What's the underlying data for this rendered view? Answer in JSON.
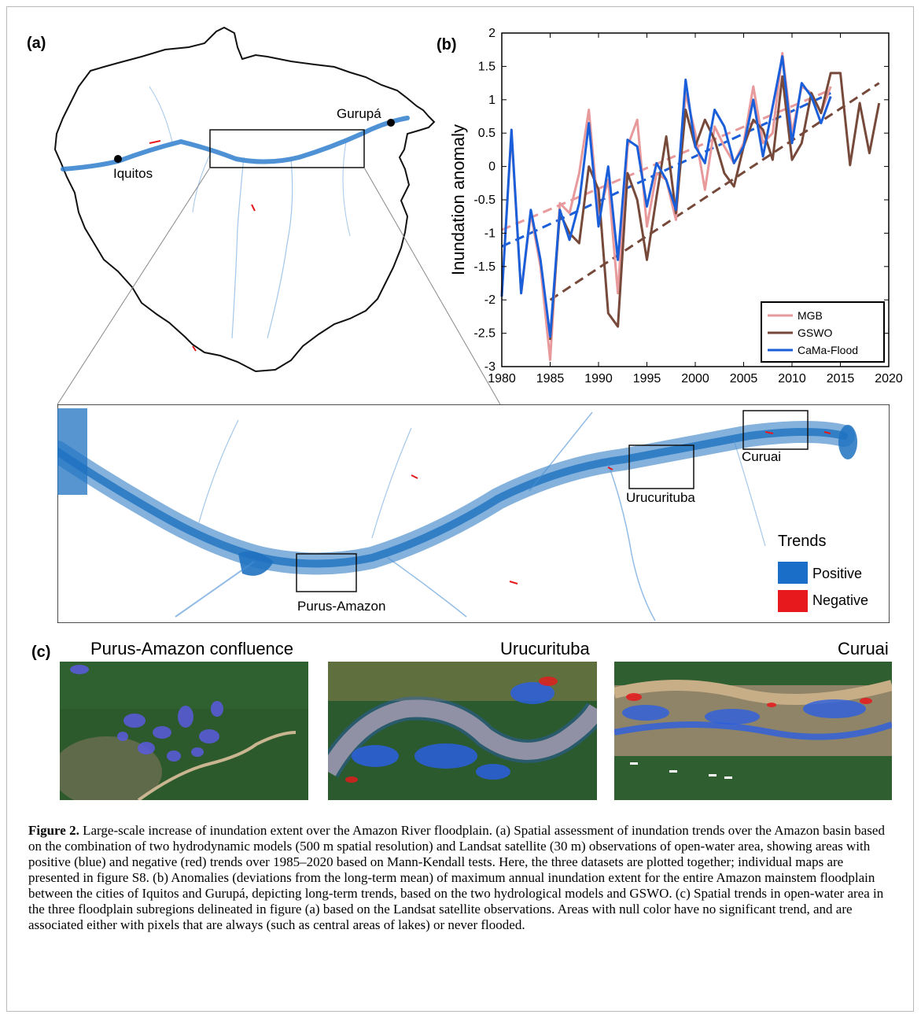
{
  "panels": {
    "a": "(a)",
    "b": "(b)",
    "c": "(c)"
  },
  "map": {
    "cities": {
      "iquitos": "Iquitos",
      "gurupa": "Gurupá"
    },
    "regions": {
      "curuai": "Curuai",
      "urucurituba": "Urucurituba",
      "purus": "Purus-Amazon"
    },
    "legend": {
      "title": "Trends",
      "positive": "Positive",
      "negative": "Negative"
    },
    "colors": {
      "positive": "#1a6ec8",
      "negative": "#e8191c"
    }
  },
  "satellite_titles": {
    "purus": "Purus-Amazon  confluence",
    "urucurituba": "Urucurituba",
    "curuai": "Curuai"
  },
  "chart_data": {
    "type": "line",
    "ylabel": "Inundation  anomaly",
    "xlim": [
      1980,
      2020
    ],
    "ylim": [
      -3,
      2
    ],
    "xticks": [
      "1980",
      "1985",
      "1990",
      "1995",
      "2000",
      "2005",
      "2010",
      "2015",
      "2020"
    ],
    "yticks": [
      "2",
      "1.5",
      "1",
      "0.5",
      "0",
      "-0.5",
      "-1",
      "-1.5",
      "-2",
      "-2.5",
      "-3"
    ],
    "legend_position": "bottom-right",
    "series": [
      {
        "name": "MGB",
        "color": "#e8999b",
        "x": [
          1980,
          1981,
          1982,
          1983,
          1984,
          1985,
          1986,
          1987,
          1988,
          1989,
          1990,
          1991,
          1992,
          1993,
          1994,
          1995,
          1996,
          1997,
          1998,
          1999,
          2000,
          2001,
          2002,
          2003,
          2004,
          2005,
          2006,
          2007,
          2008,
          2009,
          2010,
          2011,
          2012,
          2013,
          2014
        ],
        "y": [
          -1.9,
          0.5,
          -1.9,
          -0.7,
          -1.5,
          -2.9,
          -0.55,
          -0.7,
          -0.1,
          0.85,
          -0.75,
          -0.2,
          -1.9,
          0.3,
          0.7,
          -0.9,
          -0.1,
          -0.2,
          -0.8,
          1.1,
          0.5,
          -0.35,
          0.6,
          0.3,
          0.05,
          0.35,
          1.2,
          0.35,
          0.5,
          1.7,
          0.5,
          1.2,
          1.1,
          0.8,
          1.2
        ],
        "trend": [
          -0.95,
          1.15
        ]
      },
      {
        "name": "GSWO",
        "color": "#76493a",
        "x": [
          1985,
          1986,
          1987,
          1988,
          1989,
          1990,
          1991,
          1992,
          1993,
          1994,
          1995,
          1996,
          1997,
          1998,
          1999,
          2000,
          2001,
          2002,
          2003,
          2004,
          2005,
          2006,
          2007,
          2008,
          2009,
          2010,
          2011,
          2012,
          2013,
          2014,
          2015,
          2016,
          2017,
          2018,
          2019
        ],
        "y": [
          -2.6,
          -0.7,
          -1.0,
          -1.15,
          0.0,
          -0.35,
          -2.2,
          -2.4,
          -0.1,
          -0.5,
          -1.4,
          -0.45,
          0.45,
          -0.7,
          0.85,
          0.3,
          0.7,
          0.4,
          -0.1,
          -0.3,
          0.3,
          0.7,
          0.55,
          0.1,
          1.35,
          0.1,
          0.35,
          1.1,
          0.8,
          1.4,
          1.4,
          0.02,
          0.95,
          0.2,
          0.95
        ],
        "trend": [
          -2.0,
          1.25
        ]
      },
      {
        "name": "CaMa-Flood",
        "color": "#1a5fd9",
        "x": [
          1980,
          1981,
          1982,
          1983,
          1984,
          1985,
          1986,
          1987,
          1988,
          1989,
          1990,
          1991,
          1992,
          1993,
          1994,
          1995,
          1996,
          1997,
          1998,
          1999,
          2000,
          2001,
          2002,
          2003,
          2004,
          2005,
          2006,
          2007,
          2008,
          2009,
          2010,
          2011,
          2012,
          2013,
          2014
        ],
        "y": [
          -1.95,
          0.55,
          -1.9,
          -0.65,
          -1.4,
          -2.55,
          -0.65,
          -1.1,
          -0.55,
          0.65,
          -0.9,
          0.0,
          -1.4,
          0.4,
          0.3,
          -0.6,
          0.05,
          -0.2,
          -0.65,
          1.3,
          0.3,
          0.05,
          0.85,
          0.6,
          0.05,
          0.3,
          1.0,
          0.15,
          0.9,
          1.65,
          0.35,
          1.25,
          1.05,
          0.65,
          1.05
        ],
        "trend": [
          -1.2,
          1.1
        ]
      }
    ]
  },
  "caption": {
    "label": "Figure 2.",
    "text": " Large-scale increase of inundation extent over the Amazon River floodplain. (a) Spatial assessment of inundation trends over the Amazon basin based on the combination of two hydrodynamic models (500 m spatial resolution) and Landsat satellite (30 m) observations of open-water area, showing areas with positive (blue) and negative (red) trends over 1985–2020 based on Mann-Kendall tests. Here, the three datasets are plotted together; individual maps are presented in figure S8. (b) Anomalies (deviations from the long-term mean) of maximum annual inundation extent for the entire Amazon mainstem floodplain between the cities of Iquitos and Gurupá, depicting long-term trends, based on the two hydrological models and GSWO. (c) Spatial trends in open-water area in the three floodplain subregions delineated in figure (a) based on the Landsat satellite observations. Areas with null color have no significant trend, and are associated either with pixels that are always (such as central areas of lakes) or never flooded."
  }
}
